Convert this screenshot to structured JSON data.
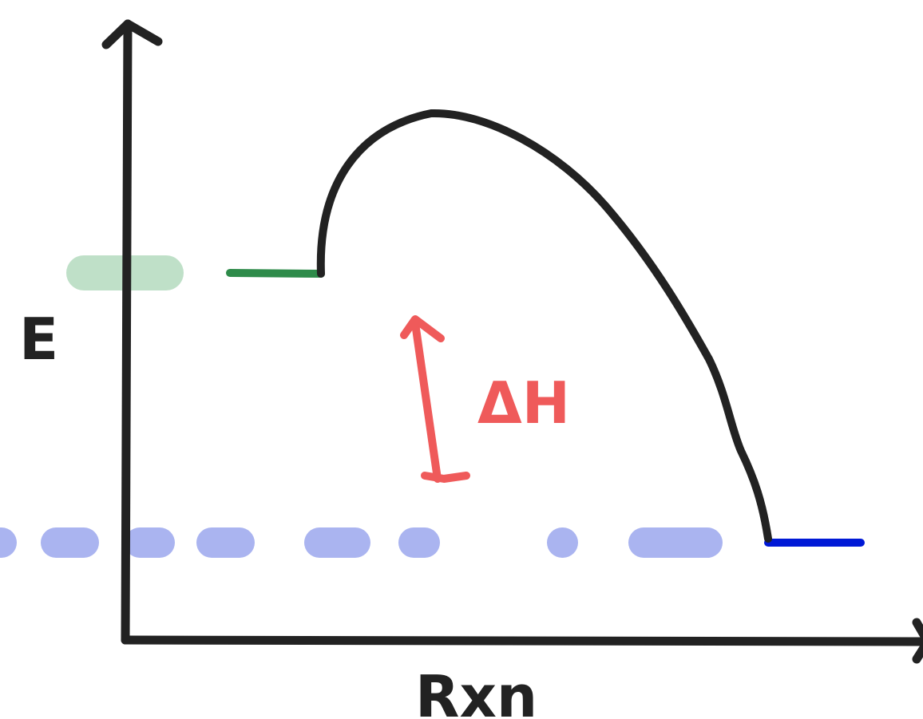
{
  "diagram": {
    "y_axis_label": "E",
    "x_axis_label": "Rxn",
    "delta_label": "ΔH",
    "colors": {
      "ink": "#222222",
      "reactant": "#2e8b4a",
      "reactant_guide": "#bfe0c8",
      "product": "#0019d6",
      "product_guide": "#aab4f0",
      "delta": "#ef5a5a"
    }
  }
}
